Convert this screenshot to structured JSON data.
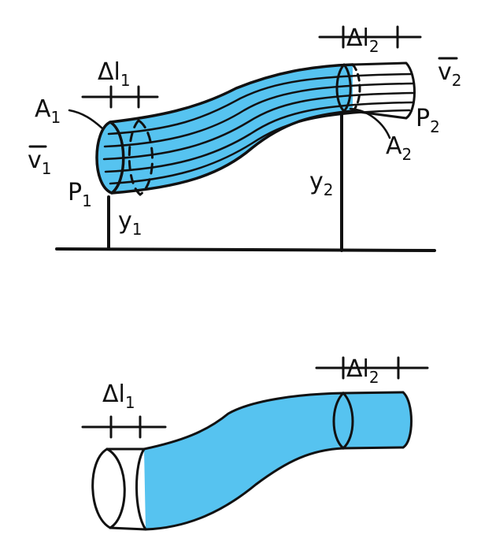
{
  "colors": {
    "fluid": "#56c3f0",
    "ink": "#111111",
    "background": "#ffffff"
  },
  "top_diagram": {
    "labels": {
      "dl1_main": "Δl",
      "dl1_sub": "1",
      "dl2_main": "Δl",
      "dl2_sub": "2",
      "A1_main": "A",
      "A1_sub": "1",
      "A2_main": "A",
      "A2_sub": "2",
      "v1_main": "v",
      "v1_sub": "1",
      "v2_main": "v",
      "v2_sub": "2",
      "P1_main": "P",
      "P1_sub": "1",
      "P2_main": "P",
      "P2_sub": "2",
      "y1_main": "y",
      "y1_sub": "1",
      "y2_main": "y",
      "y2_sub": "2"
    }
  },
  "bottom_diagram": {
    "labels": {
      "dl1_main": "Δl",
      "dl1_sub": "1",
      "dl2_main": "Δl",
      "dl2_sub": "2"
    }
  }
}
